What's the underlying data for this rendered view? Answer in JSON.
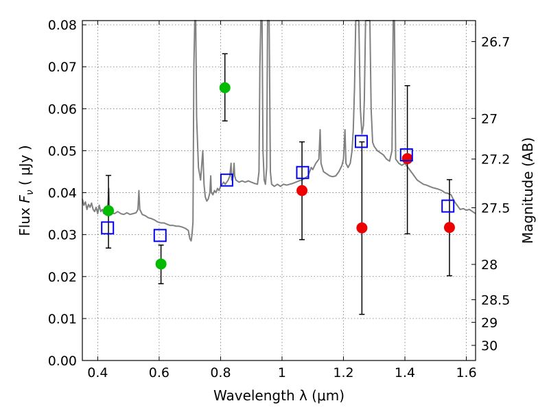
{
  "chart_data": {
    "type": "scatter",
    "xlabel": "Wavelength  λ (μm)",
    "ylabel": "Flux  F_ν  ( μJy )",
    "ylabel_parts": {
      "pre": "Flux ",
      "sym": "F",
      "sub": "ν",
      "post": "  ( μJy )"
    },
    "ylabel_right": "Magnitude (AB)",
    "xlim": [
      0.35,
      1.63
    ],
    "ylim": [
      0.0,
      0.081
    ],
    "grid": true,
    "x_ticks": [
      0.4,
      0.6,
      0.8,
      1.0,
      1.2,
      1.4,
      1.6
    ],
    "x_tick_labels": [
      "0.4",
      "0.6",
      "0.8",
      "1",
      "1.2",
      "1.4",
      "1.6"
    ],
    "y_ticks": [
      0.0,
      0.01,
      0.02,
      0.03,
      0.04,
      0.05,
      0.06,
      0.07,
      0.08
    ],
    "y_tick_labels": [
      "0.00",
      "0.01",
      "0.02",
      "0.03",
      "0.04",
      "0.05",
      "0.06",
      "0.07",
      "0.08"
    ],
    "right_ticks": [
      {
        "label": "26.7",
        "flux": 0.076
      },
      {
        "label": "27",
        "flux": 0.0577
      },
      {
        "label": "27.2",
        "flux": 0.048
      },
      {
        "label": "27.5",
        "flux": 0.0364
      },
      {
        "label": "28",
        "flux": 0.0229
      },
      {
        "label": "28.5",
        "flux": 0.0145
      },
      {
        "label": "29",
        "flux": 0.0091
      },
      {
        "label": "30",
        "flux": 0.0036
      }
    ],
    "series": [
      {
        "marker": "circle",
        "color": "#00bb00",
        "points": [
          {
            "x": 0.435,
            "y": 0.0357,
            "err": [
              0.0268,
              0.0441
            ]
          },
          {
            "x": 0.606,
            "y": 0.023,
            "err": [
              0.0183,
              0.0275
            ]
          },
          {
            "x": 0.814,
            "y": 0.065,
            "err": [
              0.0571,
              0.0731
            ]
          }
        ]
      },
      {
        "marker": "circle",
        "color": "#ee0000",
        "points": [
          {
            "x": 1.065,
            "y": 0.0405,
            "err": [
              0.0288,
              0.0521
            ]
          },
          {
            "x": 1.26,
            "y": 0.0316,
            "err": [
              0.011,
              0.0521
            ]
          },
          {
            "x": 1.408,
            "y": 0.0481,
            "err": [
              0.0302,
              0.0655
            ]
          },
          {
            "x": 1.545,
            "y": 0.0317,
            "err": [
              0.0202,
              0.0431
            ]
          }
        ]
      },
      {
        "marker": "square-open",
        "color": "#0000ee",
        "points": [
          {
            "x": 0.432,
            "y": 0.0316
          },
          {
            "x": 0.603,
            "y": 0.0298
          },
          {
            "x": 0.82,
            "y": 0.043
          },
          {
            "x": 1.067,
            "y": 0.0448
          },
          {
            "x": 1.258,
            "y": 0.0522
          },
          {
            "x": 1.405,
            "y": 0.049
          },
          {
            "x": 1.54,
            "y": 0.0368
          }
        ]
      }
    ],
    "spectrum": {
      "color": "#808080",
      "points": [
        [
          0.35,
          0.0385
        ],
        [
          0.355,
          0.037
        ],
        [
          0.36,
          0.0378
        ],
        [
          0.365,
          0.036
        ],
        [
          0.37,
          0.0372
        ],
        [
          0.375,
          0.0365
        ],
        [
          0.38,
          0.0375
        ],
        [
          0.385,
          0.036
        ],
        [
          0.39,
          0.0355
        ],
        [
          0.395,
          0.0365
        ],
        [
          0.4,
          0.035
        ],
        [
          0.405,
          0.037
        ],
        [
          0.41,
          0.0355
        ],
        [
          0.415,
          0.036
        ],
        [
          0.42,
          0.035
        ],
        [
          0.425,
          0.0352
        ],
        [
          0.43,
          0.035
        ],
        [
          0.434,
          0.038
        ],
        [
          0.436,
          0.041
        ],
        [
          0.438,
          0.0365
        ],
        [
          0.445,
          0.0352
        ],
        [
          0.455,
          0.035
        ],
        [
          0.465,
          0.0355
        ],
        [
          0.475,
          0.035
        ],
        [
          0.485,
          0.0348
        ],
        [
          0.495,
          0.0352
        ],
        [
          0.505,
          0.0348
        ],
        [
          0.515,
          0.035
        ],
        [
          0.525,
          0.0352
        ],
        [
          0.531,
          0.036
        ],
        [
          0.534,
          0.0405
        ],
        [
          0.537,
          0.036
        ],
        [
          0.545,
          0.0348
        ],
        [
          0.555,
          0.0345
        ],
        [
          0.565,
          0.034
        ],
        [
          0.575,
          0.0338
        ],
        [
          0.585,
          0.0335
        ],
        [
          0.595,
          0.033
        ],
        [
          0.605,
          0.0328
        ],
        [
          0.615,
          0.0328
        ],
        [
          0.625,
          0.0325
        ],
        [
          0.635,
          0.0322
        ],
        [
          0.645,
          0.0322
        ],
        [
          0.655,
          0.032
        ],
        [
          0.665,
          0.032
        ],
        [
          0.675,
          0.0318
        ],
        [
          0.685,
          0.0315
        ],
        [
          0.695,
          0.031
        ],
        [
          0.7,
          0.029
        ],
        [
          0.704,
          0.0285
        ],
        [
          0.707,
          0.03
        ],
        [
          0.71,
          0.033
        ],
        [
          0.713,
          0.07
        ],
        [
          0.716,
          0.081
        ],
        [
          0.719,
          0.081
        ],
        [
          0.722,
          0.058
        ],
        [
          0.728,
          0.046
        ],
        [
          0.735,
          0.043
        ],
        [
          0.742,
          0.05
        ],
        [
          0.746,
          0.042
        ],
        [
          0.75,
          0.039
        ],
        [
          0.755,
          0.038
        ],
        [
          0.76,
          0.0385
        ],
        [
          0.765,
          0.04
        ],
        [
          0.768,
          0.044
        ],
        [
          0.77,
          0.04
        ],
        [
          0.775,
          0.0395
        ],
        [
          0.78,
          0.0405
        ],
        [
          0.785,
          0.04
        ],
        [
          0.79,
          0.041
        ],
        [
          0.795,
          0.0405
        ],
        [
          0.8,
          0.0415
        ],
        [
          0.805,
          0.042
        ],
        [
          0.81,
          0.0425
        ],
        [
          0.815,
          0.042
        ],
        [
          0.82,
          0.0425
        ],
        [
          0.825,
          0.043
        ],
        [
          0.83,
          0.044
        ],
        [
          0.834,
          0.047
        ],
        [
          0.836,
          0.043
        ],
        [
          0.84,
          0.0435
        ],
        [
          0.844,
          0.047
        ],
        [
          0.846,
          0.044
        ],
        [
          0.85,
          0.043
        ],
        [
          0.86,
          0.0425
        ],
        [
          0.87,
          0.0428
        ],
        [
          0.88,
          0.0425
        ],
        [
          0.89,
          0.0428
        ],
        [
          0.9,
          0.0425
        ],
        [
          0.91,
          0.0422
        ],
        [
          0.92,
          0.042
        ],
        [
          0.925,
          0.045
        ],
        [
          0.928,
          0.07
        ],
        [
          0.931,
          0.081
        ],
        [
          0.935,
          0.081
        ],
        [
          0.938,
          0.05
        ],
        [
          0.942,
          0.043
        ],
        [
          0.946,
          0.042
        ],
        [
          0.95,
          0.046
        ],
        [
          0.953,
          0.081
        ],
        [
          0.958,
          0.081
        ],
        [
          0.962,
          0.045
        ],
        [
          0.966,
          0.042
        ],
        [
          0.975,
          0.0415
        ],
        [
          0.985,
          0.042
        ],
        [
          0.995,
          0.0415
        ],
        [
          1.005,
          0.042
        ],
        [
          1.015,
          0.0418
        ],
        [
          1.025,
          0.042
        ],
        [
          1.035,
          0.0422
        ],
        [
          1.045,
          0.0425
        ],
        [
          1.055,
          0.0428
        ],
        [
          1.065,
          0.043
        ],
        [
          1.075,
          0.0435
        ],
        [
          1.085,
          0.044
        ],
        [
          1.09,
          0.045
        ],
        [
          1.095,
          0.046
        ],
        [
          1.1,
          0.0455
        ],
        [
          1.11,
          0.047
        ],
        [
          1.12,
          0.048
        ],
        [
          1.124,
          0.055
        ],
        [
          1.127,
          0.047
        ],
        [
          1.135,
          0.045
        ],
        [
          1.145,
          0.0445
        ],
        [
          1.155,
          0.044
        ],
        [
          1.165,
          0.0438
        ],
        [
          1.175,
          0.044
        ],
        [
          1.185,
          0.045
        ],
        [
          1.195,
          0.0465
        ],
        [
          1.2,
          0.048
        ],
        [
          1.205,
          0.055
        ],
        [
          1.208,
          0.047
        ],
        [
          1.215,
          0.046
        ],
        [
          1.222,
          0.047
        ],
        [
          1.228,
          0.05
        ],
        [
          1.232,
          0.055
        ],
        [
          1.236,
          0.065
        ],
        [
          1.24,
          0.081
        ],
        [
          1.25,
          0.081
        ],
        [
          1.255,
          0.06
        ],
        [
          1.26,
          0.054
        ],
        [
          1.265,
          0.056
        ],
        [
          1.268,
          0.062
        ],
        [
          1.272,
          0.081
        ],
        [
          1.286,
          0.081
        ],
        [
          1.29,
          0.06
        ],
        [
          1.295,
          0.052
        ],
        [
          1.3,
          0.051
        ],
        [
          1.31,
          0.05
        ],
        [
          1.32,
          0.0495
        ],
        [
          1.33,
          0.049
        ],
        [
          1.34,
          0.048
        ],
        [
          1.35,
          0.0475
        ],
        [
          1.358,
          0.05
        ],
        [
          1.362,
          0.081
        ],
        [
          1.366,
          0.081
        ],
        [
          1.37,
          0.048
        ],
        [
          1.38,
          0.047
        ],
        [
          1.39,
          0.0465
        ],
        [
          1.4,
          0.047
        ],
        [
          1.41,
          0.046
        ],
        [
          1.42,
          0.045
        ],
        [
          1.43,
          0.044
        ],
        [
          1.44,
          0.043
        ],
        [
          1.45,
          0.0425
        ],
        [
          1.46,
          0.042
        ],
        [
          1.47,
          0.0418
        ],
        [
          1.48,
          0.0415
        ],
        [
          1.49,
          0.0412
        ],
        [
          1.5,
          0.041
        ],
        [
          1.51,
          0.0408
        ],
        [
          1.52,
          0.0405
        ],
        [
          1.53,
          0.04
        ],
        [
          1.54,
          0.0398
        ],
        [
          1.55,
          0.0395
        ],
        [
          1.56,
          0.038
        ],
        [
          1.57,
          0.037
        ],
        [
          1.58,
          0.036
        ],
        [
          1.59,
          0.0362
        ],
        [
          1.6,
          0.0358
        ],
        [
          1.61,
          0.036
        ],
        [
          1.62,
          0.0355
        ],
        [
          1.63,
          0.035
        ]
      ]
    }
  }
}
